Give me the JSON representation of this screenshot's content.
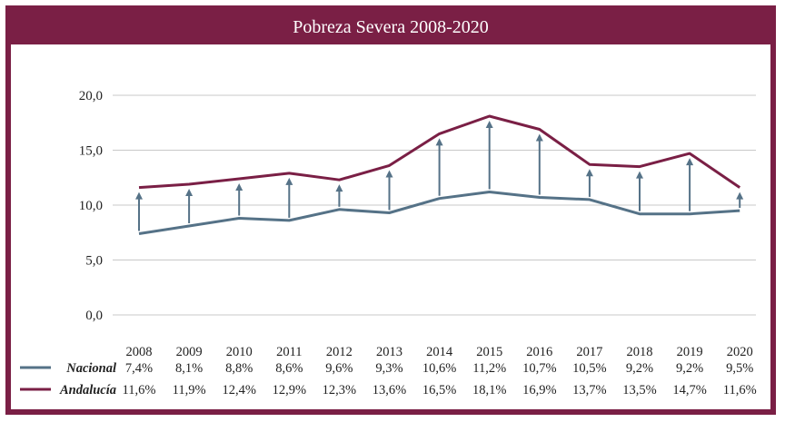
{
  "title": "Pobreza Severa 2008-2020",
  "chart_data": {
    "type": "line",
    "title": "Pobreza Severa 2008-2020",
    "xlabel": "",
    "ylabel": "",
    "ylim": [
      0,
      20
    ],
    "yticks": [
      "0,0",
      "5,0",
      "10,0",
      "15,0",
      "20,0"
    ],
    "grid": true,
    "categories": [
      "2008",
      "2009",
      "2010",
      "2011",
      "2012",
      "2013",
      "2014",
      "2015",
      "2016",
      "2017",
      "2018",
      "2019",
      "2020"
    ],
    "series": [
      {
        "name": "Nacional",
        "color": "#557287",
        "values": [
          7.4,
          8.1,
          8.8,
          8.6,
          9.6,
          9.3,
          10.6,
          11.2,
          10.7,
          10.5,
          9.2,
          9.2,
          9.5
        ],
        "labels": [
          "7,4%",
          "8,1%",
          "8,8%",
          "8,6%",
          "9,6%",
          "9,3%",
          "10,6%",
          "11,2%",
          "10,7%",
          "10,5%",
          "9,2%",
          "9,2%",
          "9,5%"
        ]
      },
      {
        "name": "Andalucía",
        "color": "#7a1f45",
        "values": [
          11.6,
          11.9,
          12.4,
          12.9,
          12.3,
          13.6,
          16.5,
          18.1,
          16.9,
          13.7,
          13.5,
          14.7,
          11.6
        ],
        "labels": [
          "11,6%",
          "11,9%",
          "12,4%",
          "12,9%",
          "12,3%",
          "13,6%",
          "16,5%",
          "18,1%",
          "16,9%",
          "13,7%",
          "13,5%",
          "14,7%",
          "11,6%"
        ]
      }
    ],
    "gap_arrows": true,
    "arrow_color": "#557287"
  }
}
